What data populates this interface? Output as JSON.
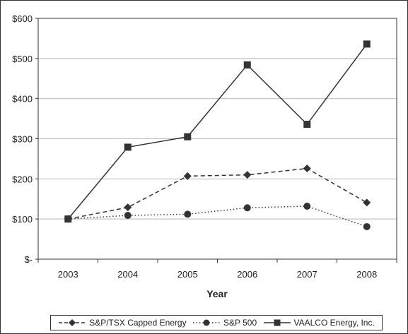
{
  "chart_data": {
    "type": "line",
    "xlabel": "Year",
    "ylabel": "",
    "categories": [
      "2003",
      "2004",
      "2005",
      "2006",
      "2007",
      "2008"
    ],
    "ylim": [
      0,
      600
    ],
    "yticks": [
      0,
      100,
      200,
      300,
      400,
      500,
      600
    ],
    "ytick_labels": [
      "$-",
      "$100",
      "$200",
      "$300",
      "$400",
      "$500",
      "$600"
    ],
    "grid": "horizontal",
    "legend_position": "bottom",
    "series": [
      {
        "name": "S&P/TSX Capped Energy",
        "values": [
          100,
          129,
          207,
          210,
          226,
          141
        ],
        "marker": "diamond",
        "line": "dashed",
        "color": "#333333"
      },
      {
        "name": "S&P 500",
        "values": [
          100,
          109,
          112,
          128,
          132,
          81
        ],
        "marker": "circle",
        "line": "dotted",
        "color": "#333333"
      },
      {
        "name": "VAALCO Energy, Inc.",
        "values": [
          100,
          279,
          305,
          484,
          336,
          536
        ],
        "marker": "square",
        "line": "solid",
        "color": "#333333"
      }
    ]
  }
}
